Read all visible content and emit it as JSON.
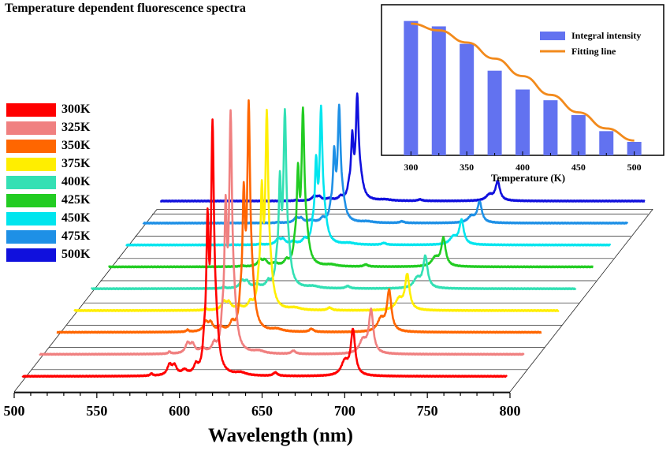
{
  "chart_data": [
    {
      "type": "line",
      "title": "Temperature dependent fluorescence spectra",
      "xlabel": "Wavelength (nm)",
      "ylabel": "",
      "xlim": [
        500,
        800
      ],
      "xticks": [
        500,
        550,
        600,
        650,
        700,
        750,
        800
      ],
      "layout": "3d-waterfall",
      "grid": false,
      "legend_position": "left",
      "peaks_nm": [
        {
          "x": 583,
          "h": 0.01,
          "w": 0.8
        },
        {
          "x": 594,
          "h": 0.045,
          "w": 1.6
        },
        {
          "x": 597,
          "h": 0.04,
          "w": 1.6
        },
        {
          "x": 603,
          "h": 0.02,
          "w": 2.0
        },
        {
          "x": 610,
          "h": 0.035,
          "w": 1.4
        },
        {
          "x": 615,
          "h": 0.09,
          "w": 1.0
        },
        {
          "x": 617,
          "h": 0.6,
          "w": 0.9
        },
        {
          "x": 620,
          "h": 1.0,
          "w": 1.0
        },
        {
          "x": 622,
          "h": 0.18,
          "w": 2.0
        },
        {
          "x": 637,
          "h": 0.012,
          "w": 4.0
        },
        {
          "x": 658,
          "h": 0.015,
          "w": 1.5
        },
        {
          "x": 700,
          "h": 0.06,
          "w": 2.5
        },
        {
          "x": 705,
          "h": 0.2,
          "w": 1.6
        }
      ],
      "series": [
        {
          "name": "300K",
          "color": "#ff0000",
          "scale": 1.0,
          "shift": 0
        },
        {
          "name": "325K",
          "color": "#f08080",
          "scale": 0.95,
          "shift": 0.5
        },
        {
          "name": "350K",
          "color": "#ff6600",
          "scale": 0.9,
          "shift": 1
        },
        {
          "name": "375K",
          "color": "#ffee00",
          "scale": 0.78,
          "shift": 1.5
        },
        {
          "name": "400K",
          "color": "#33e0b4",
          "scale": 0.7,
          "shift": 2
        },
        {
          "name": "425K",
          "color": "#22cc22",
          "scale": 0.62,
          "shift": 2.5
        },
        {
          "name": "450K",
          "color": "#00e5ee",
          "scale": 0.54,
          "shift": 3
        },
        {
          "name": "475K",
          "color": "#1e90e6",
          "scale": 0.46,
          "shift": 3.5
        },
        {
          "name": "500K",
          "color": "#1010dd",
          "scale": 0.42,
          "shift": 4
        }
      ]
    },
    {
      "type": "bar",
      "xlabel": "Temperature (K)",
      "ylabel": "",
      "categories": [
        300,
        325,
        350,
        375,
        400,
        425,
        450,
        475,
        500
      ],
      "xticks": [
        300,
        350,
        400,
        450,
        500
      ],
      "xlim": [
        280,
        520
      ],
      "ylim": [
        0,
        1.08
      ],
      "grid": false,
      "legend_position": "top-right",
      "series": [
        {
          "name": "Integral intensity",
          "type": "bar",
          "color": "#6272f0",
          "values": [
            1.0,
            0.96,
            0.83,
            0.63,
            0.49,
            0.41,
            0.3,
            0.18,
            0.1
          ]
        },
        {
          "name": "Fitting line",
          "type": "line",
          "color": "#f28a1c",
          "values": [
            0.98,
            0.93,
            0.84,
            0.72,
            0.59,
            0.45,
            0.32,
            0.2,
            0.11
          ]
        }
      ]
    }
  ]
}
